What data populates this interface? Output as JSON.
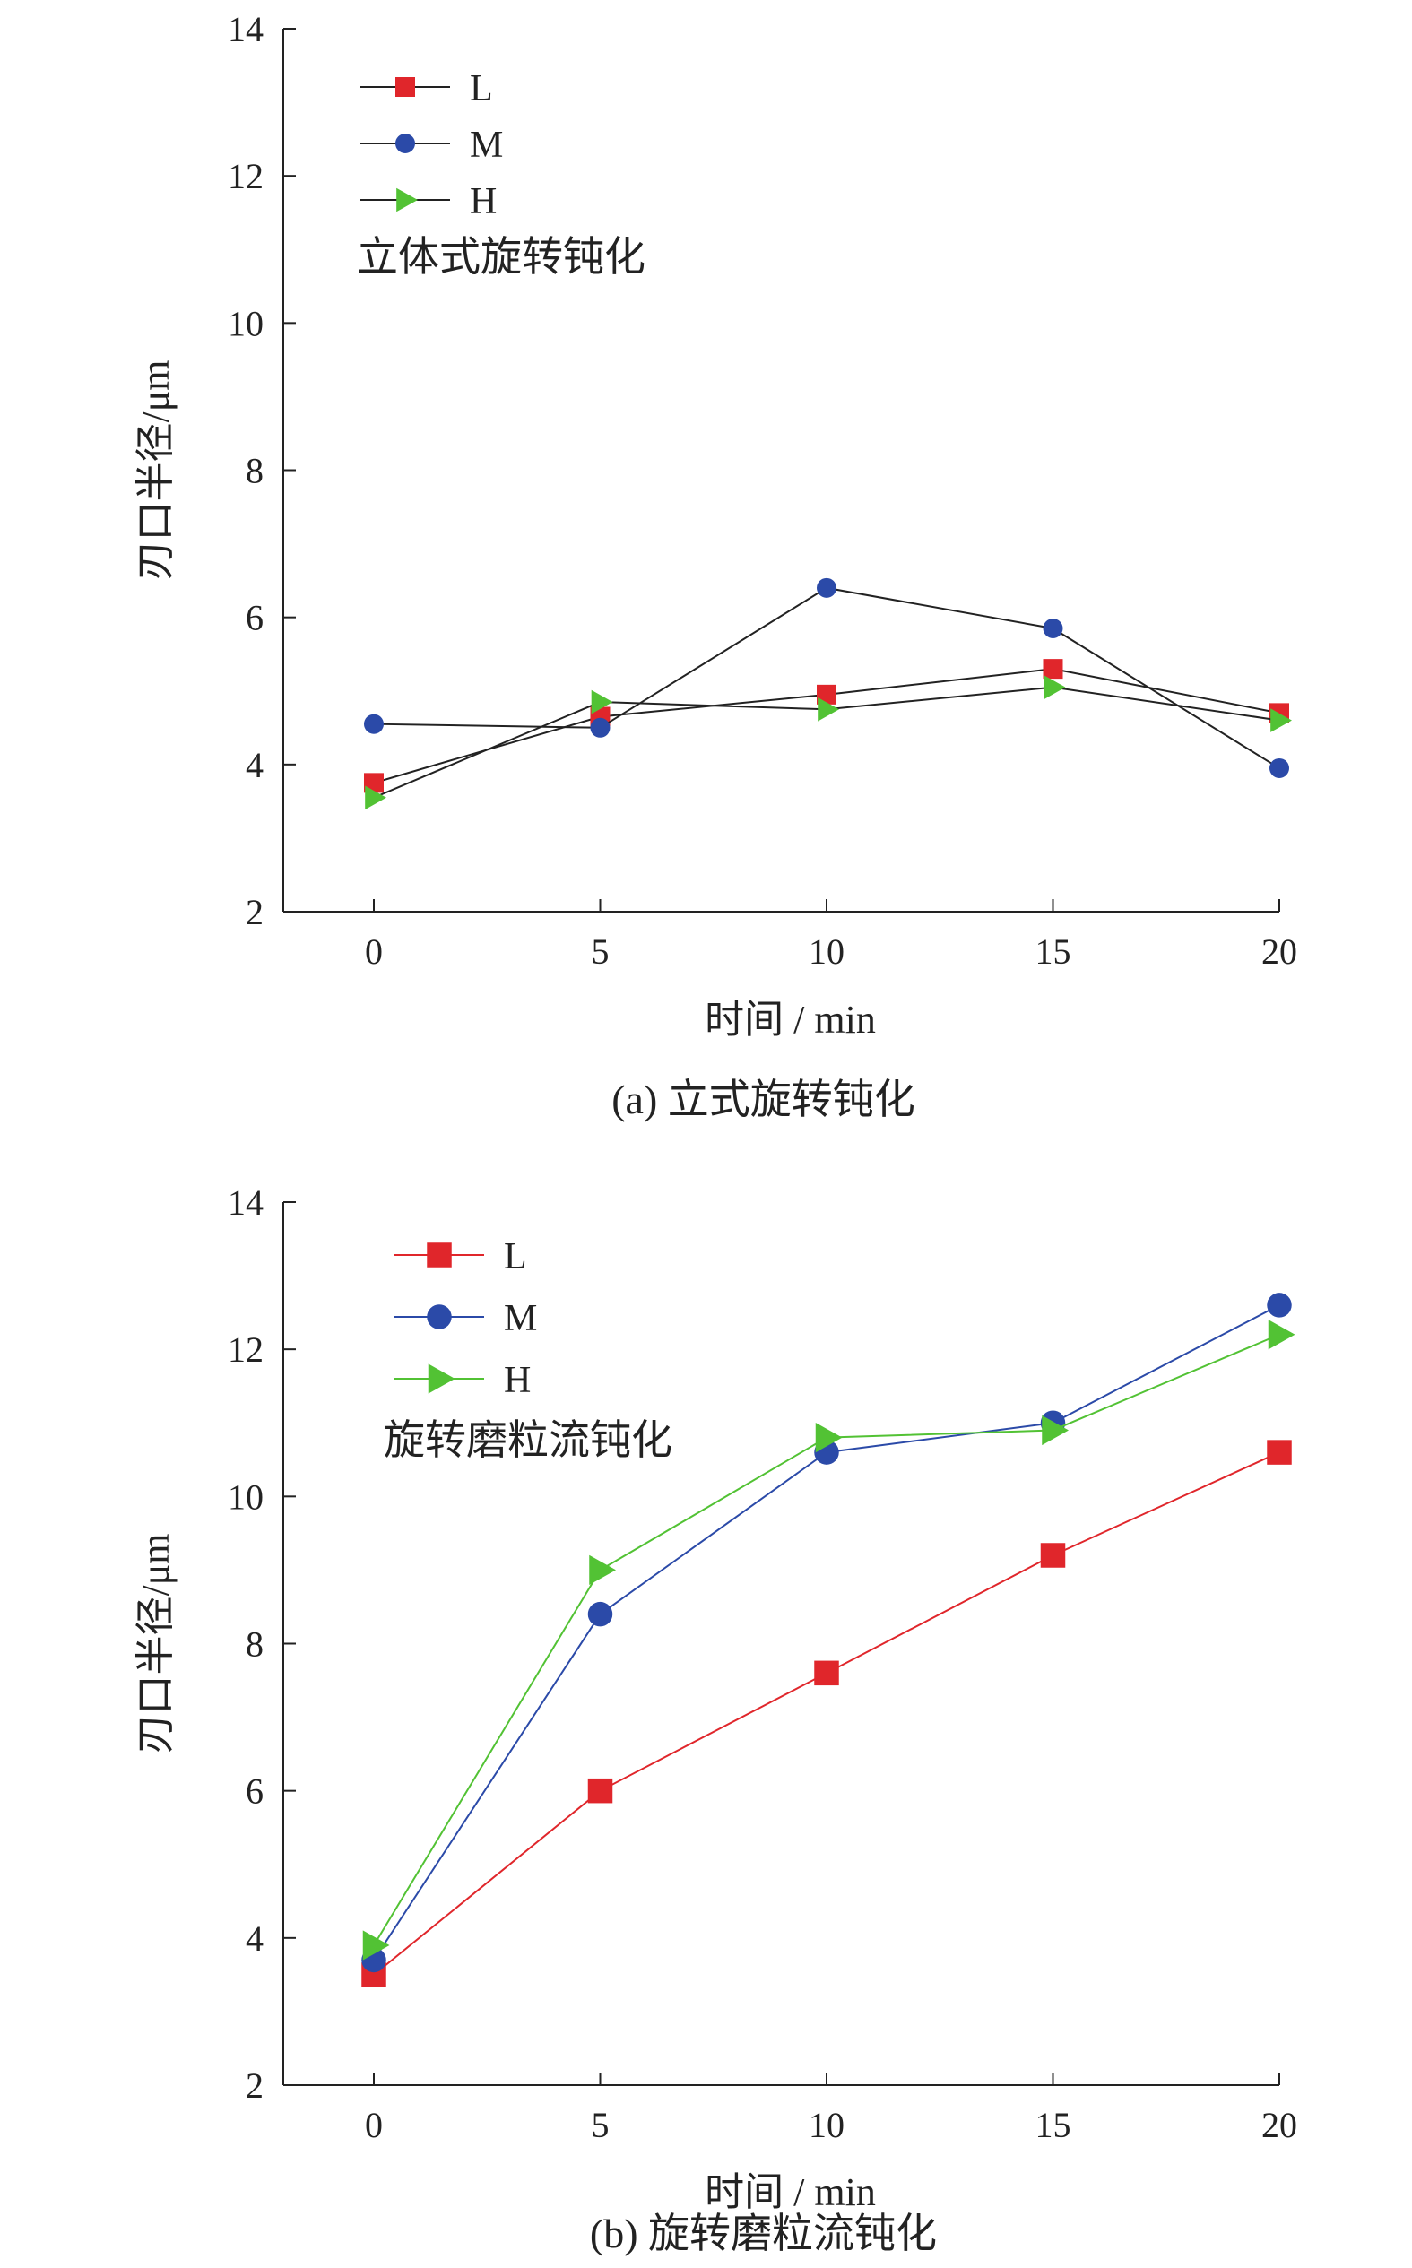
{
  "chart_data": [
    {
      "type": "line",
      "caption": "(a) 立式旋转钝化",
      "annotation": "立体式旋转钝化",
      "xlabel": "时间 / min",
      "ylabel": "刃口半径/μm",
      "x": [
        0,
        5,
        10,
        15,
        20
      ],
      "x_ticks": [
        "0",
        "5",
        "10",
        "15",
        "20"
      ],
      "y_ticks": [
        "2",
        "4",
        "6",
        "8",
        "10",
        "12",
        "14"
      ],
      "xlim": [
        -2,
        20
      ],
      "ylim": [
        2,
        14
      ],
      "legend_position": "top-left",
      "grid": false,
      "line_color": "#222222",
      "series": [
        {
          "name": "L",
          "marker": "square",
          "color": "#e0262b",
          "values": [
            3.75,
            4.65,
            4.95,
            5.3,
            4.7
          ]
        },
        {
          "name": "M",
          "marker": "circle",
          "color": "#2b4aa8",
          "values": [
            4.55,
            4.5,
            6.4,
            5.85,
            3.95
          ]
        },
        {
          "name": "H",
          "marker": "triangle",
          "color": "#52c234",
          "values": [
            3.55,
            4.85,
            4.75,
            5.05,
            4.6
          ]
        }
      ]
    },
    {
      "type": "line",
      "caption": "(b) 旋转磨粒流钝化",
      "annotation": "旋转磨粒流钝化",
      "xlabel": "时间 / min",
      "ylabel": "刃口半径/μm",
      "x": [
        0,
        5,
        10,
        15,
        20
      ],
      "x_ticks": [
        "0",
        "5",
        "10",
        "15",
        "20"
      ],
      "y_ticks": [
        "2",
        "4",
        "6",
        "8",
        "10",
        "12",
        "14"
      ],
      "xlim": [
        -2,
        20
      ],
      "ylim": [
        2,
        14
      ],
      "legend_position": "top-left",
      "grid": false,
      "line_color": "series",
      "series": [
        {
          "name": "L",
          "marker": "square",
          "color": "#e0262b",
          "values": [
            3.5,
            6.0,
            7.6,
            9.2,
            10.6
          ]
        },
        {
          "name": "M",
          "marker": "circle",
          "color": "#2b4aa8",
          "values": [
            3.7,
            8.4,
            10.6,
            11.0,
            12.6
          ]
        },
        {
          "name": "H",
          "marker": "triangle",
          "color": "#52c234",
          "values": [
            3.9,
            9.0,
            10.8,
            10.9,
            12.2
          ]
        }
      ]
    }
  ]
}
